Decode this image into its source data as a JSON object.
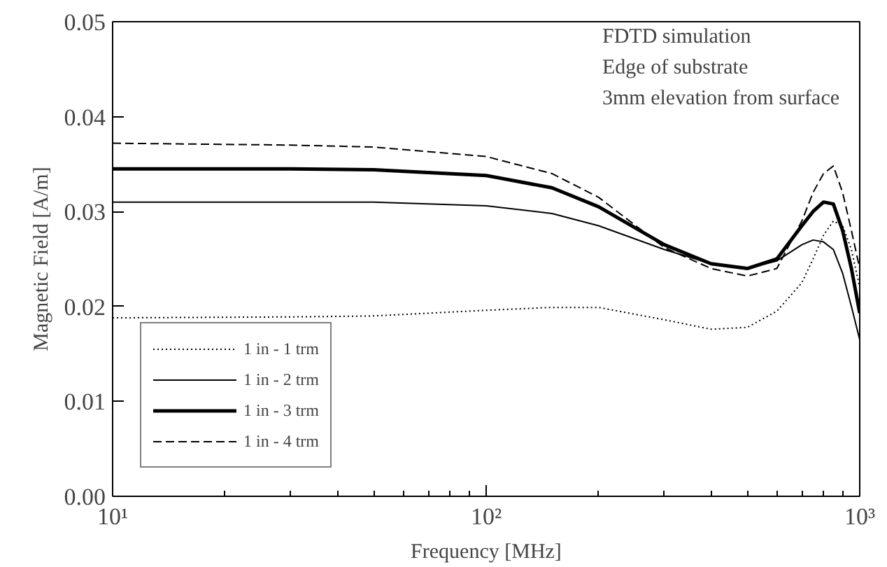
{
  "chart_data": {
    "type": "line",
    "xlabel": "Frequency [MHz]",
    "ylabel": "Magnetic Field [A/m]",
    "log": "x",
    "xlim": [
      10,
      1000
    ],
    "ylim": [
      0,
      0.05
    ],
    "xticks": [
      {
        "value": 10,
        "label": "10¹"
      },
      {
        "value": 100,
        "label": "10²"
      },
      {
        "value": 1000,
        "label": "10³"
      }
    ],
    "yticks": [
      {
        "value": 0,
        "label": "0.00"
      },
      {
        "value": 0.01,
        "label": "0.01"
      },
      {
        "value": 0.02,
        "label": "0.02"
      },
      {
        "value": 0.03,
        "label": "0.03"
      },
      {
        "value": 0.04,
        "label": "0.04"
      },
      {
        "value": 0.05,
        "label": "0.05"
      }
    ],
    "grid": false,
    "legend": "bottom left",
    "marker": "none",
    "annotations": [
      "FDTD simulation",
      "Edge of substrate",
      "3mm elevation from surface"
    ],
    "x": [
      10,
      30,
      50,
      100,
      150,
      200,
      300,
      400,
      500,
      600,
      700,
      750,
      800,
      850,
      900,
      950,
      1000
    ],
    "series": [
      {
        "name": "1 in - 1 trm",
        "color": "#000000",
        "line_style": "dotted",
        "values": [
          0.0188,
          0.0189,
          0.019,
          0.0196,
          0.0199,
          0.0199,
          0.0186,
          0.0176,
          0.0178,
          0.0195,
          0.0225,
          0.025,
          0.0275,
          0.029,
          0.0285,
          0.026,
          0.022
        ]
      },
      {
        "name": "1 in - 2 trm",
        "color": "#000000",
        "line_style": "solid",
        "values": [
          0.031,
          0.031,
          0.031,
          0.0306,
          0.0298,
          0.0285,
          0.026,
          0.0245,
          0.024,
          0.0248,
          0.0265,
          0.027,
          0.0268,
          0.026,
          0.0235,
          0.02,
          0.0165
        ]
      },
      {
        "name": "1 in - 3 trm",
        "color": "#000000",
        "line_style": "solid",
        "values": [
          0.0345,
          0.0345,
          0.0344,
          0.0338,
          0.0325,
          0.0305,
          0.0265,
          0.0245,
          0.024,
          0.025,
          0.0285,
          0.03,
          0.031,
          0.0308,
          0.028,
          0.024,
          0.0193
        ]
      },
      {
        "name": "1 in - 4 trm",
        "color": "#000000",
        "line_style": "dashed",
        "values": [
          0.0372,
          0.037,
          0.0368,
          0.0358,
          0.034,
          0.0315,
          0.0262,
          0.024,
          0.0232,
          0.024,
          0.029,
          0.032,
          0.034,
          0.0348,
          0.032,
          0.028,
          0.024
        ]
      }
    ]
  }
}
